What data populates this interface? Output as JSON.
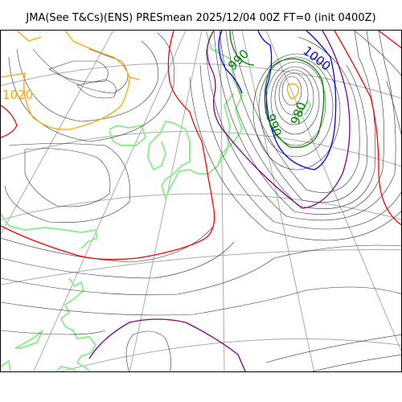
{
  "title": "JMA(See T&Cs)(ENS) PRESmean 2025/12/04 00Z FT=0 (init 0400Z)",
  "contour_labels": {
    "l1020": "1020",
    "l1000": "1000",
    "l990a": "990",
    "l990b": "990",
    "l980": "980"
  },
  "colors": {
    "isobar": "#333333",
    "graticule": "#aaaaaa",
    "coast": "#90ee90",
    "c1020": "#ffa500",
    "c1012": "#ff0000",
    "c1008": "#800080",
    "c1000": "#0000ff",
    "c990": "#008000"
  }
}
